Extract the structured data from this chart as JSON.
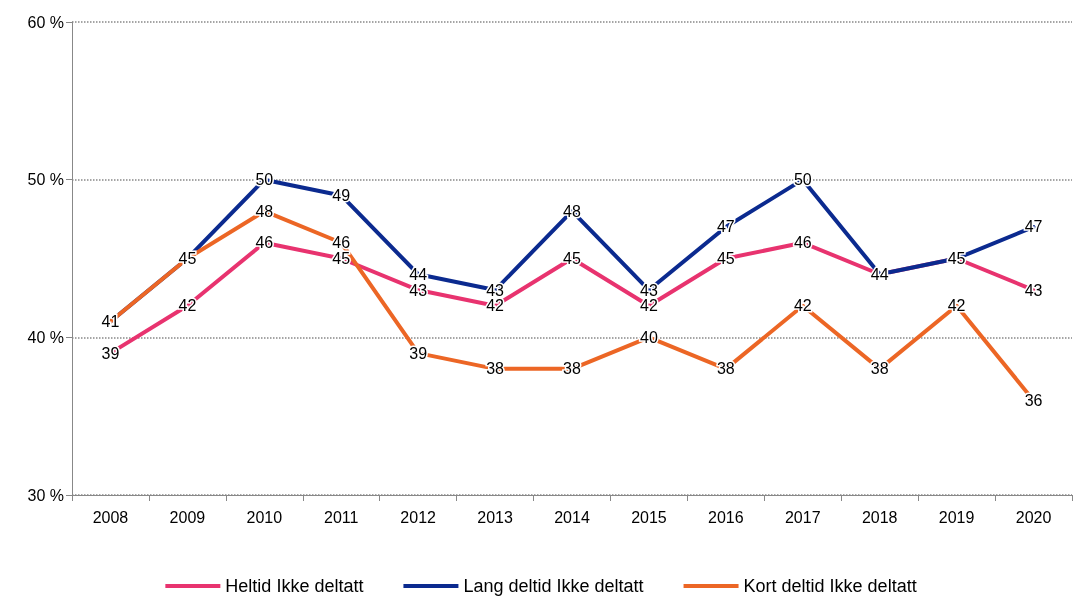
{
  "chart_data": {
    "type": "line",
    "categories": [
      "2008",
      "2009",
      "2010",
      "2011",
      "2012",
      "2013",
      "2014",
      "2015",
      "2016",
      "2017",
      "2018",
      "2019",
      "2020"
    ],
    "series": [
      {
        "name": "Heltid Ikke deltatt",
        "color": "#e8336f",
        "values": [
          39,
          42,
          46,
          45,
          43,
          42,
          45,
          42,
          45,
          46,
          44,
          45,
          43
        ],
        "value_labels": [
          "39",
          "42",
          "46",
          "45",
          "43",
          "42",
          "45",
          "42",
          "45",
          "46",
          "44",
          "45",
          "43"
        ]
      },
      {
        "name": "Lang deltid Ikke deltatt",
        "color": "#0b2a8f",
        "values": [
          41,
          45,
          50,
          49,
          44,
          43,
          48,
          43,
          47,
          50,
          44,
          45,
          47
        ],
        "value_labels": [
          "41",
          "45",
          "50",
          "49",
          "44",
          "43",
          "48",
          "43",
          "47",
          "50",
          null,
          null,
          "47"
        ]
      },
      {
        "name": "Kort deltid Ikke deltatt",
        "color": "#ec6625",
        "values": [
          41,
          45,
          48,
          46,
          39,
          38,
          38,
          40,
          38,
          42,
          38,
          42,
          36
        ],
        "value_labels": [
          null,
          null,
          "48",
          "46",
          "39",
          "38",
          "38",
          "40",
          "38",
          "42",
          "38",
          "42",
          "36"
        ]
      }
    ],
    "ylim": [
      30,
      60
    ],
    "yticks": [
      {
        "value": 30,
        "label": "30 %"
      },
      {
        "value": 40,
        "label": "40 %"
      },
      {
        "value": 50,
        "label": "50 %"
      },
      {
        "value": 60,
        "label": "60 %"
      }
    ],
    "grid": "y",
    "legend": "bottom",
    "marker": "none",
    "line_style": "solid"
  }
}
